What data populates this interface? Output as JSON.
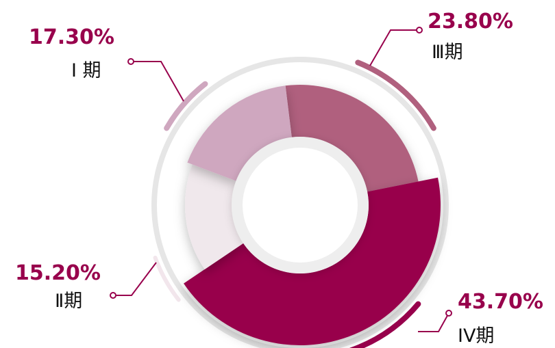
{
  "chart_data": {
    "type": "pie",
    "categories": [
      "I 期",
      "Ⅱ期",
      "Ⅲ期",
      "IV期"
    ],
    "values": [
      17.3,
      15.2,
      23.8,
      43.7
    ],
    "value_labels": [
      "17.30%",
      "15.20%",
      "23.80%",
      "43.70%"
    ],
    "colors": [
      "#cfa7bf",
      "#f0e8ec",
      "#b0607e",
      "#98004c"
    ],
    "label_color": "#98004c",
    "ring_color": "#e6e6e6",
    "title": ""
  }
}
